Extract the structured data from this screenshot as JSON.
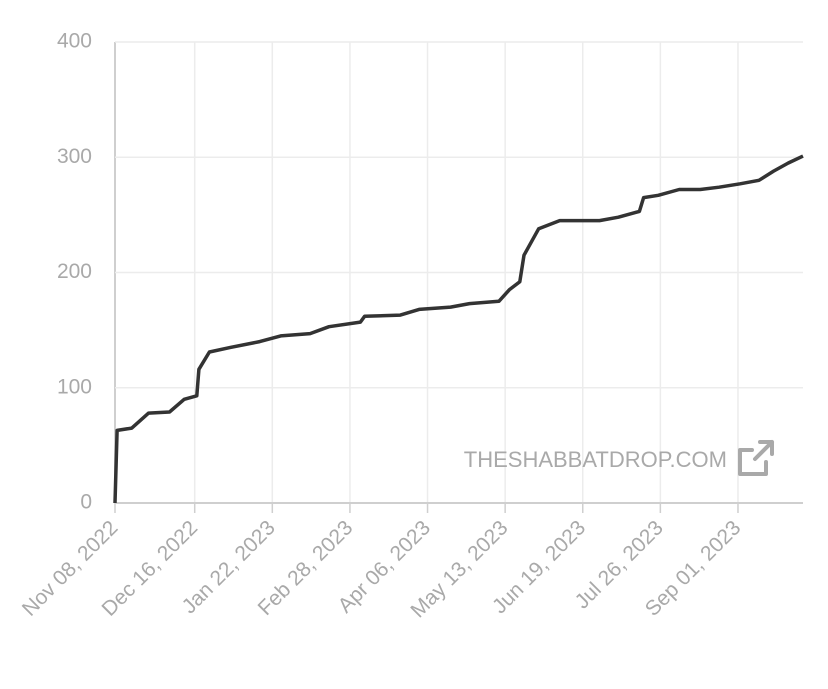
{
  "chart_data": {
    "type": "line",
    "x": [
      "2022-11-08",
      "2022-11-09",
      "2022-11-16",
      "2022-11-24",
      "2022-12-04",
      "2022-12-11",
      "2022-12-17",
      "2022-12-18",
      "2022-12-23",
      "2023-01-02",
      "2023-01-16",
      "2023-01-26",
      "2023-02-09",
      "2023-02-18",
      "2023-03-05",
      "2023-03-07",
      "2023-03-24",
      "2023-04-02",
      "2023-04-17",
      "2023-04-26",
      "2023-05-10",
      "2023-05-15",
      "2023-05-20",
      "2023-05-22",
      "2023-05-29",
      "2023-06-08",
      "2023-06-27",
      "2023-07-06",
      "2023-07-16",
      "2023-07-18",
      "2023-07-25",
      "2023-08-04",
      "2023-08-14",
      "2023-08-23",
      "2023-09-02",
      "2023-09-11",
      "2023-09-18",
      "2023-09-25",
      "2023-10-02"
    ],
    "series": [
      {
        "color": "#333333",
        "values": [
          0,
          63,
          65,
          78,
          79,
          90,
          93,
          116,
          131,
          135,
          140,
          145,
          147,
          153,
          157,
          162,
          163,
          168,
          170,
          173,
          175,
          185,
          192,
          215,
          238,
          245,
          245,
          248,
          253,
          265,
          267,
          272,
          272,
          274,
          277,
          280,
          288,
          295,
          301
        ]
      }
    ],
    "xlim": [
      "2022-11-08",
      "2023-10-02"
    ],
    "xticks": [
      {
        "value": "2022-11-08",
        "label": "Nov 08, 2022"
      },
      {
        "value": "2022-12-16",
        "label": "Dec 16, 2022"
      },
      {
        "value": "2023-01-22",
        "label": "Jan 22, 2023"
      },
      {
        "value": "2023-02-28",
        "label": "Feb 28, 2023"
      },
      {
        "value": "2023-04-06",
        "label": "Apr 06, 2023"
      },
      {
        "value": "2023-05-13",
        "label": "May 13, 2023"
      },
      {
        "value": "2023-06-19",
        "label": "Jun 19, 2023"
      },
      {
        "value": "2023-07-26",
        "label": "Jul 26, 2023"
      },
      {
        "value": "2023-09-01",
        "label": "Sep 01, 2023"
      }
    ],
    "ylim": [
      0,
      400
    ],
    "yticks": [
      0,
      100,
      200,
      300,
      400
    ],
    "grid": true,
    "annotation": "THESHABBATDROP.COM"
  }
}
